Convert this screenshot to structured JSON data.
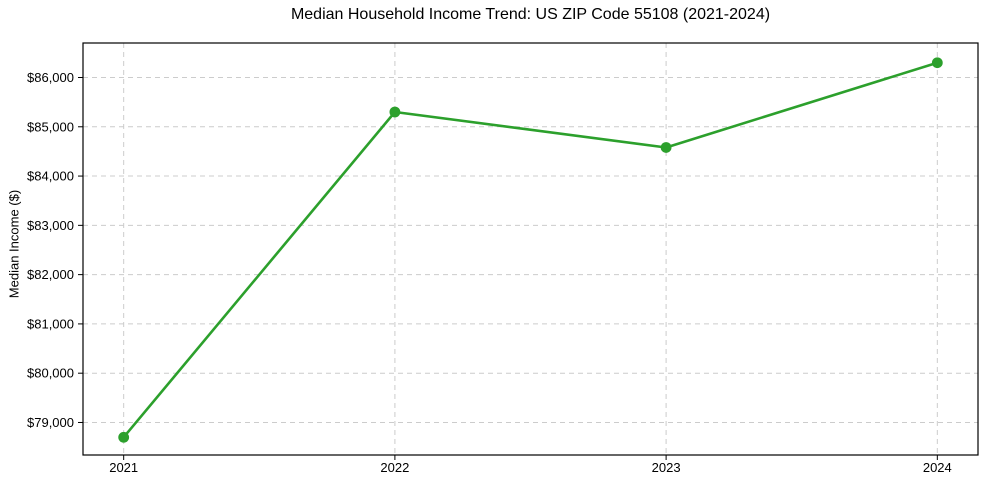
{
  "window": {
    "background": "#ffffff"
  },
  "chart_data": {
    "type": "line",
    "title": "Median Household Income Trend: US ZIP Code 55108 (2021-2024)",
    "xlabel": "",
    "ylabel": "Median Income ($)",
    "categories": [
      "2021",
      "2022",
      "2023",
      "2024"
    ],
    "values": [
      78700,
      85300,
      84580,
      86300
    ],
    "ylim": [
      78340,
      86700
    ],
    "yticks": [
      79000,
      80000,
      81000,
      82000,
      83000,
      84000,
      85000,
      86000
    ],
    "ytick_labels": [
      "$79,000",
      "$80,000",
      "$81,000",
      "$82,000",
      "$83,000",
      "$84,000",
      "$85,000",
      "$86,000"
    ],
    "grid": {
      "style": "dashed",
      "axes": "both",
      "color": "#cccccc"
    },
    "line_color": "#2ca02c",
    "axis_color": "#000000",
    "marker": "circle",
    "legend_position": "none"
  }
}
